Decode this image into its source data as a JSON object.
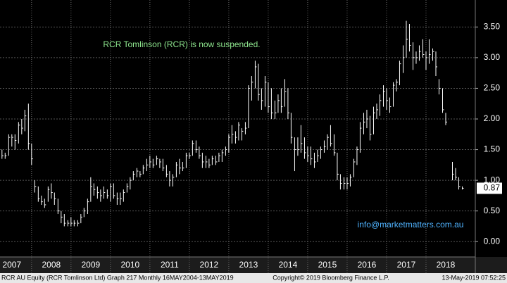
{
  "chart_data": {
    "type": "ohlc",
    "annotation": "RCR Tomlinson (RCR) is now suspended.",
    "watermark": "info@marketmatters.com.au",
    "last_price": 0.87,
    "last_price_label": "0.87",
    "footer": {
      "left": "RCR AU Equity (RCR Tomlinson Ltd) Graph 217  Monthly 16MAY2004-13MAY2019",
      "center": "Copyright© 2019 Bloomberg Finance L.P.",
      "right": "13-May-2019 07:52:25"
    },
    "color": "#ffffff",
    "annotation_color": "#8ee68e",
    "watermark_color": "#4fb3ff",
    "grid": true,
    "xlim": [
      2007.2,
      2019.25
    ],
    "xticks": [
      2007,
      2008,
      2009,
      2010,
      2011,
      2012,
      2013,
      2014,
      2015,
      2016,
      2017,
      2018
    ],
    "ylim": [
      -0.25,
      3.94
    ],
    "yticks": [
      {
        "value": 0,
        "label": "0.00"
      },
      {
        "value": 0.5,
        "label": "0.50"
      },
      {
        "value": 1,
        "label": "1.00"
      },
      {
        "value": 1.5,
        "label": "1.50"
      },
      {
        "value": 2,
        "label": "2.00"
      },
      {
        "value": 2.5,
        "label": "2.50"
      },
      {
        "value": 3,
        "label": "3.00"
      },
      {
        "value": 3.5,
        "label": "3.50"
      }
    ],
    "x": [
      2007.25,
      2007.33,
      2007.42,
      2007.5,
      2007.58,
      2007.67,
      2007.75,
      2007.83,
      2007.92,
      2008,
      2008.08,
      2008.17,
      2008.25,
      2008.33,
      2008.42,
      2008.5,
      2008.58,
      2008.67,
      2008.75,
      2008.83,
      2008.92,
      2009,
      2009.08,
      2009.17,
      2009.25,
      2009.33,
      2009.42,
      2009.5,
      2009.58,
      2009.67,
      2009.75,
      2009.83,
      2009.92,
      2010,
      2010.08,
      2010.17,
      2010.25,
      2010.33,
      2010.42,
      2010.5,
      2010.58,
      2010.67,
      2010.75,
      2010.83,
      2010.92,
      2011,
      2011.08,
      2011.17,
      2011.25,
      2011.33,
      2011.42,
      2011.5,
      2011.58,
      2011.67,
      2011.75,
      2011.83,
      2011.92,
      2012,
      2012.08,
      2012.17,
      2012.25,
      2012.33,
      2012.42,
      2012.5,
      2012.58,
      2012.67,
      2012.75,
      2012.83,
      2012.92,
      2013,
      2013.08,
      2013.17,
      2013.25,
      2013.33,
      2013.42,
      2013.5,
      2013.58,
      2013.67,
      2013.75,
      2013.83,
      2013.92,
      2014,
      2014.08,
      2014.17,
      2014.25,
      2014.33,
      2014.42,
      2014.5,
      2014.58,
      2014.67,
      2014.75,
      2014.83,
      2014.92,
      2015,
      2015.08,
      2015.17,
      2015.25,
      2015.33,
      2015.42,
      2015.5,
      2015.58,
      2015.67,
      2015.75,
      2015.83,
      2015.92,
      2016,
      2016.08,
      2016.17,
      2016.25,
      2016.33,
      2016.42,
      2016.5,
      2016.58,
      2016.67,
      2016.75,
      2016.83,
      2016.92,
      2017,
      2017.08,
      2017.17,
      2017.25,
      2017.33,
      2017.42,
      2017.5,
      2017.58,
      2017.67,
      2017.75,
      2017.83,
      2017.92,
      2018,
      2018.08,
      2018.17,
      2018.25,
      2018.33,
      2018.42,
      2018.5,
      2018.58,
      2018.67,
      2018.75,
      2018.83,
      2018.92
    ],
    "high": [
      1.5,
      1.45,
      1.75,
      1.75,
      1.75,
      1.95,
      2.0,
      2.15,
      2.25,
      1.6,
      1.0,
      0.9,
      0.75,
      0.7,
      0.9,
      0.95,
      0.8,
      0.7,
      0.5,
      0.45,
      0.35,
      0.4,
      0.35,
      0.35,
      0.45,
      0.55,
      0.7,
      1.05,
      0.95,
      0.9,
      0.85,
      0.9,
      0.85,
      0.95,
      0.95,
      0.8,
      0.8,
      0.85,
      0.95,
      1.05,
      1.15,
      1.2,
      1.15,
      1.25,
      1.35,
      1.4,
      1.35,
      1.4,
      1.35,
      1.35,
      1.25,
      1.15,
      1.1,
      1.3,
      1.35,
      1.3,
      1.45,
      1.45,
      1.65,
      1.65,
      1.55,
      1.45,
      1.4,
      1.35,
      1.4,
      1.4,
      1.45,
      1.5,
      1.55,
      1.75,
      1.9,
      1.8,
      1.95,
      1.85,
      1.95,
      2.55,
      2.7,
      2.95,
      2.9,
      2.5,
      2.7,
      2.6,
      2.5,
      2.3,
      2.4,
      2.5,
      2.65,
      2.5,
      2.1,
      1.7,
      1.7,
      1.9,
      1.7,
      1.55,
      1.55,
      1.45,
      1.5,
      1.55,
      1.65,
      1.75,
      1.9,
      1.75,
      1.45,
      1.1,
      1.05,
      1.05,
      1.1,
      1.35,
      1.55,
      1.95,
      2.1,
      2.15,
      2.05,
      2.2,
      2.25,
      2.4,
      2.55,
      2.5,
      2.35,
      2.6,
      2.65,
      2.95,
      3.2,
      3.6,
      3.55,
      3.25,
      3.1,
      3.2,
      3.3,
      3.1,
      3.3,
      3.15,
      3.1,
      2.65,
      2.5,
      2.1,
      null,
      1.3,
      1.2,
      1.05,
      0.9
    ],
    "low": [
      1.35,
      1.35,
      1.4,
      1.55,
      1.5,
      1.6,
      1.75,
      1.8,
      1.5,
      1.25,
      0.8,
      0.65,
      0.6,
      0.55,
      0.65,
      0.7,
      0.6,
      0.45,
      0.3,
      0.25,
      0.25,
      0.25,
      0.25,
      0.25,
      0.3,
      0.4,
      0.45,
      0.65,
      0.75,
      0.7,
      0.65,
      0.7,
      0.7,
      0.65,
      0.7,
      0.6,
      0.6,
      0.65,
      0.8,
      0.85,
      1.0,
      1.05,
      1.05,
      1.1,
      1.15,
      1.2,
      1.2,
      1.25,
      1.2,
      1.15,
      1.05,
      0.9,
      0.9,
      1.05,
      1.1,
      1.15,
      1.2,
      1.35,
      1.4,
      1.45,
      1.35,
      1.2,
      1.2,
      1.2,
      1.25,
      1.25,
      1.3,
      1.3,
      1.4,
      1.45,
      1.6,
      1.6,
      1.65,
      1.65,
      1.75,
      1.85,
      2.3,
      2.5,
      2.3,
      2.15,
      2.2,
      2.1,
      2.0,
      2.0,
      2.1,
      2.1,
      2.2,
      2.0,
      1.6,
      1.15,
      1.4,
      1.45,
      1.35,
      1.3,
      1.25,
      1.2,
      1.3,
      1.35,
      1.45,
      1.5,
      1.55,
      1.4,
      1.0,
      0.85,
      0.85,
      0.85,
      0.9,
      1.05,
      1.25,
      1.45,
      1.75,
      1.85,
      1.65,
      1.75,
      2.0,
      2.05,
      2.2,
      2.15,
      2.1,
      2.2,
      2.45,
      2.55,
      2.75,
      3.0,
      3.1,
      2.8,
      2.9,
      2.95,
      3.0,
      2.8,
      2.9,
      2.95,
      2.7,
      2.4,
      2.1,
      1.9,
      null,
      1.0,
      1.0,
      0.85,
      0.85
    ],
    "close": [
      1.4,
      1.4,
      1.7,
      1.7,
      1.65,
      1.9,
      1.85,
      2.05,
      1.6,
      1.35,
      0.9,
      0.7,
      0.65,
      0.6,
      0.85,
      0.8,
      0.7,
      0.5,
      0.4,
      0.3,
      0.3,
      0.3,
      0.3,
      0.3,
      0.4,
      0.5,
      0.65,
      0.9,
      0.85,
      0.8,
      0.75,
      0.8,
      0.75,
      0.9,
      0.75,
      0.7,
      0.7,
      0.8,
      0.9,
      1.0,
      1.1,
      1.15,
      1.1,
      1.2,
      1.25,
      1.3,
      1.25,
      1.35,
      1.3,
      1.2,
      1.1,
      1.0,
      1.05,
      1.25,
      1.2,
      1.2,
      1.4,
      1.4,
      1.6,
      1.5,
      1.4,
      1.3,
      1.3,
      1.25,
      1.35,
      1.3,
      1.4,
      1.45,
      1.5,
      1.7,
      1.75,
      1.7,
      1.9,
      1.8,
      1.85,
      2.5,
      2.6,
      2.85,
      2.4,
      2.3,
      2.6,
      2.2,
      2.1,
      2.1,
      2.3,
      2.2,
      2.45,
      2.1,
      1.7,
      1.5,
      1.5,
      1.6,
      1.45,
      1.4,
      1.35,
      1.3,
      1.4,
      1.5,
      1.55,
      1.7,
      1.6,
      1.45,
      1.1,
      0.95,
      0.95,
      0.95,
      1.05,
      1.3,
      1.5,
      1.85,
      1.95,
      2.0,
      1.75,
      2.1,
      2.15,
      2.3,
      2.45,
      2.3,
      2.2,
      2.55,
      2.6,
      2.9,
      3.0,
      3.3,
      3.2,
      3.0,
      3.0,
      3.1,
      3.05,
      3.0,
      3.05,
      3.1,
      2.85,
      2.5,
      2.15,
      1.95,
      null,
      1.1,
      1.05,
      0.9,
      0.87
    ]
  }
}
